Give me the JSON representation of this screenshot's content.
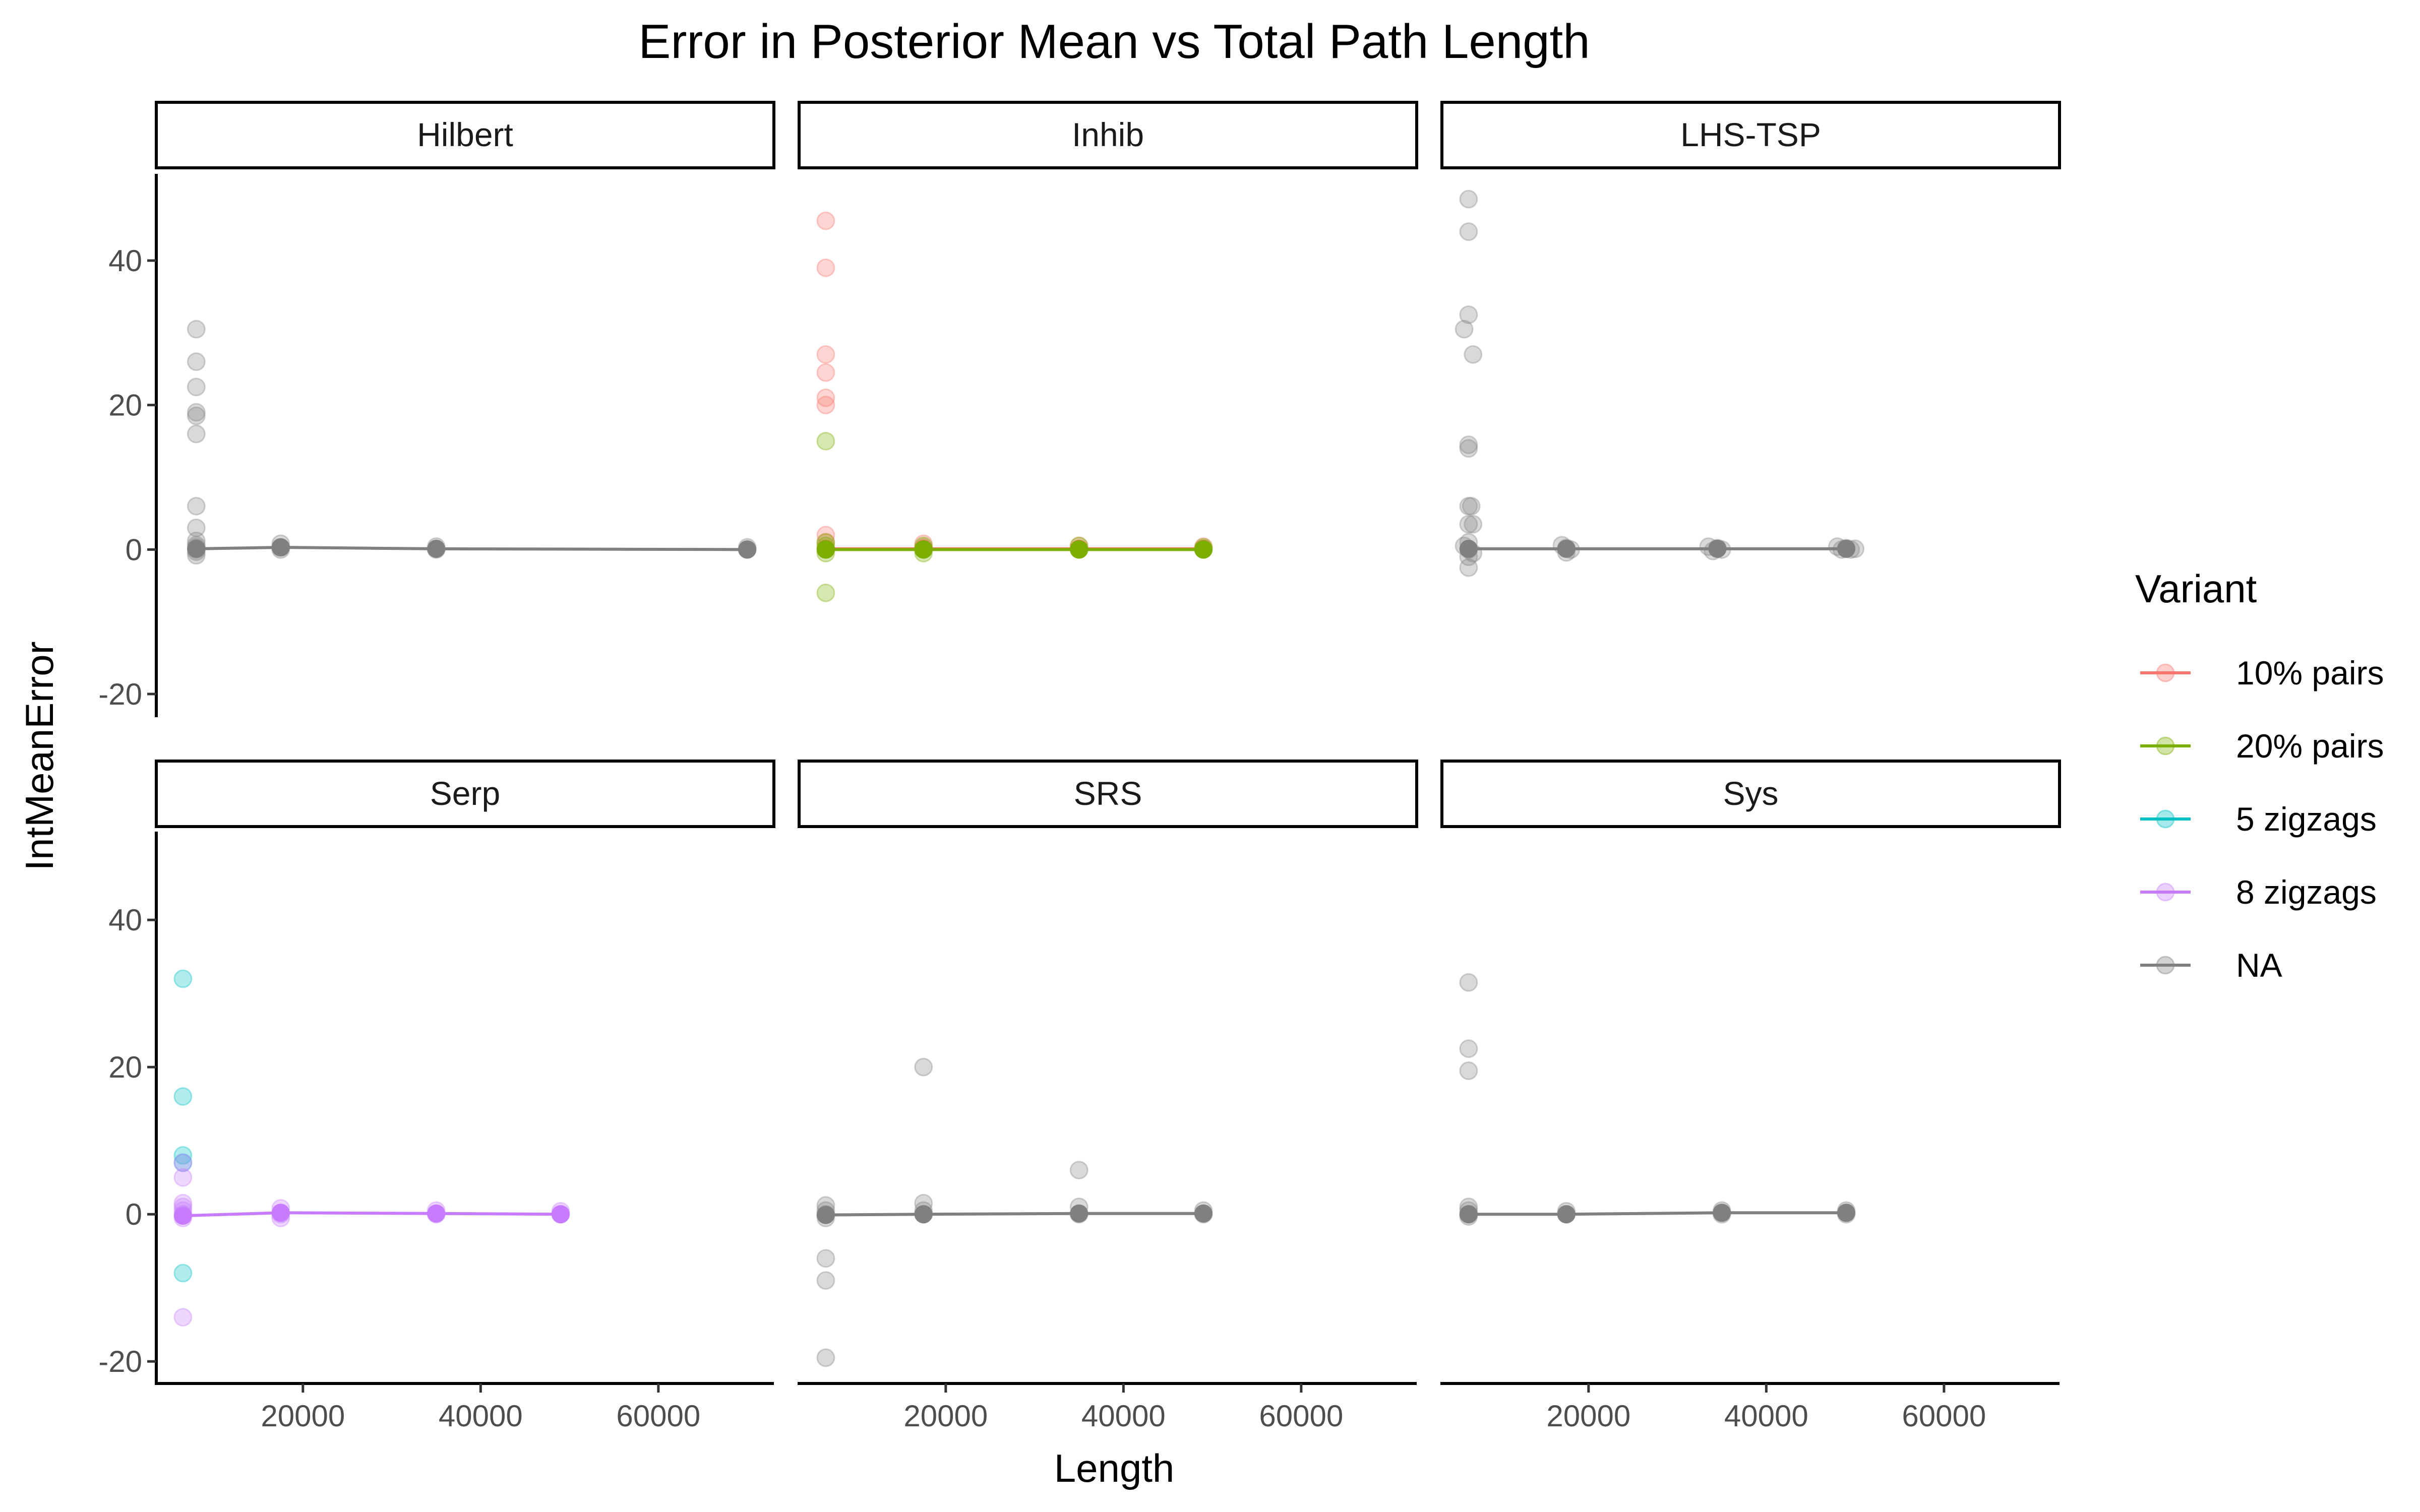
{
  "chart_data": {
    "type": "scatter",
    "title": "Error in Posterior Mean vs Total Path Length",
    "xlabel": "Length",
    "ylabel": "IntMeanError",
    "xlim": [
      3500,
      73000
    ],
    "ylim": [
      -23,
      52
    ],
    "x_ticks": [
      20000,
      40000,
      60000
    ],
    "y_ticks": [
      -20,
      0,
      20,
      40
    ],
    "x_tick_labels": [
      "20000",
      "40000",
      "60000"
    ],
    "y_tick_labels": [
      "-20",
      "0",
      "20",
      "40"
    ],
    "grid": false,
    "layout": "facet 2x3",
    "legend": {
      "title": "Variant",
      "position": "right",
      "entries": [
        {
          "label": "10% pairs",
          "color": "#F8766D"
        },
        {
          "label": "20% pairs",
          "color": "#7CAE00"
        },
        {
          "label": "5 zigzags",
          "color": "#00BFC4"
        },
        {
          "label": "8 zigzags",
          "color": "#C77CFF"
        },
        {
          "label": "NA",
          "color": "#808080"
        }
      ]
    },
    "panels": [
      {
        "name": "Hilbert",
        "series": [
          {
            "variant": "NA",
            "points": [
              [
                8000,
                30.5
              ],
              [
                8000,
                26
              ],
              [
                8000,
                22.5
              ],
              [
                8000,
                19
              ],
              [
                8000,
                18.5
              ],
              [
                8000,
                16
              ],
              [
                8000,
                6
              ],
              [
                8000,
                3
              ],
              [
                8000,
                1.2
              ],
              [
                8000,
                0.6
              ],
              [
                8000,
                0.3
              ],
              [
                8000,
                0
              ],
              [
                8000,
                -0.3
              ],
              [
                8000,
                -0.8
              ],
              [
                17500,
                0.8
              ],
              [
                17500,
                0.3
              ],
              [
                17500,
                0
              ],
              [
                35000,
                0.4
              ],
              [
                35000,
                0
              ],
              [
                70000,
                0.3
              ],
              [
                70000,
                0
              ]
            ],
            "line": [
              [
                8000,
                0.1
              ],
              [
                17500,
                0.3
              ],
              [
                35000,
                0.1
              ],
              [
                70000,
                0
              ]
            ]
          }
        ]
      },
      {
        "name": "Inhib",
        "series": [
          {
            "variant": "10% pairs",
            "points": [
              [
                6500,
                45.5
              ],
              [
                6500,
                39
              ],
              [
                6500,
                27
              ],
              [
                6500,
                24.5
              ],
              [
                6500,
                21
              ],
              [
                6500,
                20
              ],
              [
                6500,
                2
              ],
              [
                6500,
                1
              ],
              [
                17500,
                0.8
              ],
              [
                17500,
                0.3
              ],
              [
                35000,
                0.5
              ],
              [
                49000,
                0.4
              ]
            ],
            "line": [
              [
                6500,
                0.1
              ],
              [
                17500,
                0.1
              ],
              [
                35000,
                0.1
              ],
              [
                49000,
                0.1
              ]
            ]
          },
          {
            "variant": "20% pairs",
            "points": [
              [
                6500,
                15
              ],
              [
                6500,
                1
              ],
              [
                6500,
                0.5
              ],
              [
                6500,
                0
              ],
              [
                6500,
                -0.5
              ],
              [
                6500,
                -6
              ],
              [
                17500,
                0.5
              ],
              [
                17500,
                0
              ],
              [
                17500,
                -0.5
              ],
              [
                35000,
                0.5
              ],
              [
                35000,
                0
              ],
              [
                49000,
                0.3
              ],
              [
                49000,
                0
              ]
            ],
            "line": [
              [
                6500,
                0
              ],
              [
                17500,
                0
              ],
              [
                35000,
                0
              ],
              [
                49000,
                0
              ]
            ]
          }
        ]
      },
      {
        "name": "LHS-TSP",
        "series": [
          {
            "variant": "NA",
            "points": [
              [
                6500,
                48.5
              ],
              [
                6500,
                44
              ],
              [
                6500,
                32.5
              ],
              [
                6000,
                30.5
              ],
              [
                7000,
                27
              ],
              [
                6500,
                14.5
              ],
              [
                6500,
                14
              ],
              [
                6500,
                6
              ],
              [
                6800,
                6
              ],
              [
                6500,
                3.5
              ],
              [
                7000,
                3.5
              ],
              [
                6500,
                1
              ],
              [
                6000,
                0.5
              ],
              [
                6500,
                0
              ],
              [
                7000,
                -0.5
              ],
              [
                6500,
                -1
              ],
              [
                6500,
                -2.5
              ],
              [
                17000,
                0.6
              ],
              [
                17500,
                0.2
              ],
              [
                18000,
                0
              ],
              [
                17500,
                -0.4
              ],
              [
                33500,
                0.4
              ],
              [
                34500,
                0.2
              ],
              [
                35000,
                0
              ],
              [
                34000,
                -0.2
              ],
              [
                48000,
                0.4
              ],
              [
                48500,
                0
              ],
              [
                49000,
                0.2
              ],
              [
                49500,
                0
              ],
              [
                50000,
                0.1
              ]
            ],
            "line": [
              [
                6500,
                0.1
              ],
              [
                17500,
                0.1
              ],
              [
                34500,
                0.1
              ],
              [
                49000,
                0.1
              ]
            ]
          }
        ]
      },
      {
        "name": "Serp",
        "series": [
          {
            "variant": "5 zigzags",
            "points": [
              [
                6500,
                32
              ],
              [
                6500,
                16
              ],
              [
                6500,
                8
              ],
              [
                6500,
                7
              ],
              [
                6500,
                -8
              ]
            ],
            "line": []
          },
          {
            "variant": "8 zigzags",
            "points": [
              [
                6500,
                7
              ],
              [
                6500,
                5
              ],
              [
                6500,
                1.5
              ],
              [
                6500,
                1
              ],
              [
                6500,
                0.5
              ],
              [
                6500,
                0
              ],
              [
                6500,
                -0.5
              ],
              [
                6500,
                -14
              ],
              [
                17500,
                0.8
              ],
              [
                17500,
                0
              ],
              [
                17500,
                -0.5
              ],
              [
                35000,
                0.5
              ],
              [
                35000,
                0
              ],
              [
                49000,
                0.4
              ],
              [
                49000,
                0
              ]
            ],
            "line": [
              [
                6500,
                -0.2
              ],
              [
                17500,
                0.2
              ],
              [
                35000,
                0.1
              ],
              [
                49000,
                0
              ]
            ]
          }
        ]
      },
      {
        "name": "SRS",
        "series": [
          {
            "variant": "NA",
            "points": [
              [
                6500,
                1.2
              ],
              [
                6500,
                0.5
              ],
              [
                6500,
                0
              ],
              [
                6500,
                -0.5
              ],
              [
                6500,
                -6
              ],
              [
                6500,
                -9
              ],
              [
                6500,
                -19.5
              ],
              [
                17500,
                20
              ],
              [
                17500,
                1.5
              ],
              [
                17500,
                0.5
              ],
              [
                17500,
                0
              ],
              [
                35000,
                6
              ],
              [
                35000,
                1
              ],
              [
                35000,
                0
              ],
              [
                49000,
                0.5
              ],
              [
                49000,
                0
              ]
            ],
            "line": [
              [
                6500,
                -0.1
              ],
              [
                17500,
                0
              ],
              [
                35000,
                0.1
              ],
              [
                49000,
                0.1
              ]
            ]
          }
        ]
      },
      {
        "name": "Sys",
        "series": [
          {
            "variant": "NA",
            "points": [
              [
                6500,
                31.5
              ],
              [
                6500,
                22.5
              ],
              [
                6500,
                19.5
              ],
              [
                6500,
                1
              ],
              [
                6500,
                0.5
              ],
              [
                6500,
                0
              ],
              [
                6500,
                -0.3
              ],
              [
                17500,
                0.4
              ],
              [
                17500,
                0
              ],
              [
                35000,
                0.5
              ],
              [
                35000,
                0
              ],
              [
                49000,
                0.5
              ],
              [
                49000,
                0
              ]
            ],
            "line": [
              [
                6500,
                0
              ],
              [
                17500,
                0
              ],
              [
                35000,
                0.2
              ],
              [
                49000,
                0.2
              ]
            ]
          }
        ]
      }
    ]
  }
}
